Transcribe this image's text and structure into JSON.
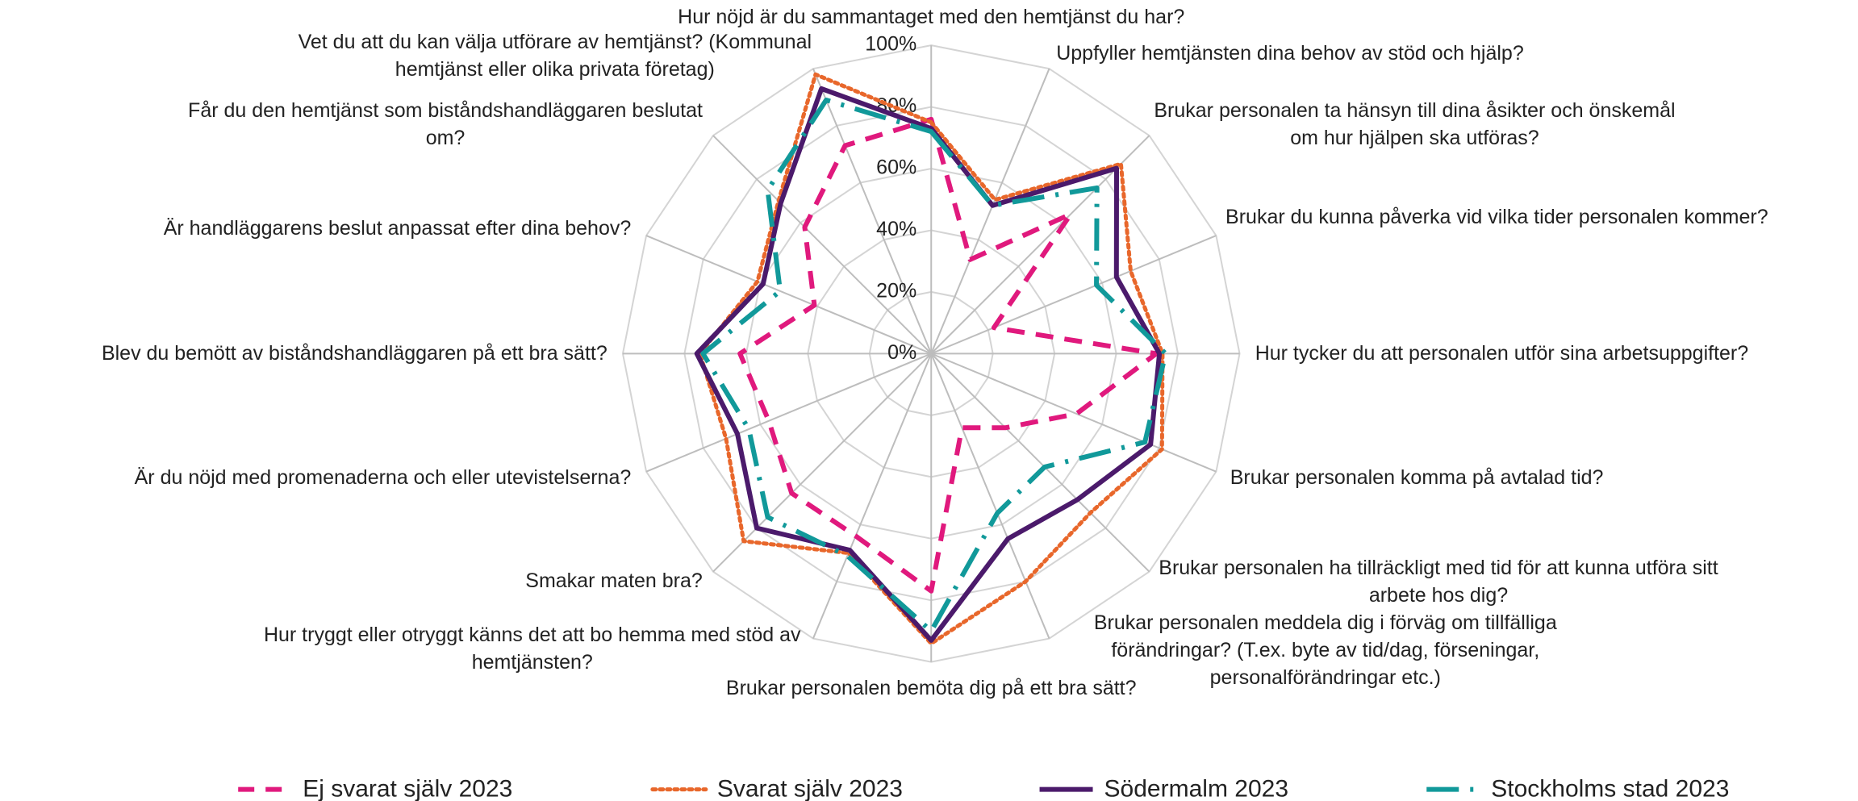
{
  "chart_data": {
    "type": "radar",
    "categories": [
      "Hur nöjd är du sammantaget med den hemtjänst du har?",
      "Uppfyller hemtjänsten dina behov av stöd och hjälp?",
      "Brukar personalen ta hänsyn till dina åsikter och önskemål om hur hjälpen ska utföras?",
      "Brukar du kunna påverka vid vilka tider personalen kommer?",
      "Hur tycker du att personalen utför sina  arbetsuppgifter?",
      "Brukar personalen komma på avtalad tid?",
      "Brukar personalen ha tillräckligt med tid för att kunna utföra sitt arbete hos dig?",
      "Brukar personalen meddela dig i förväg om tillfälliga förändringar? (T.ex. byte av tid/dag, förseningar, personalförändringar etc.)",
      "Brukar personalen bemöta dig på ett bra sätt?",
      "Hur tryggt eller otryggt känns det att bo hemma med stöd av hemtjänsten?",
      "Smakar maten bra?",
      "Är du nöjd med promenaderna och eller utevistelserna?",
      "Blev du bemött av biståndshandläggaren på ett bra sätt?",
      "Är handläggarens beslut anpassat efter dina behov?",
      "Får du den hemtjänst som biståndshandläggaren beslutat om?",
      "Vet du att du kan välja utförare av hemtjänst? (Kommunal hemtjänst eller olika privata företag)"
    ],
    "series": [
      {
        "name": "Ej svarat själv 2023",
        "color": "#e0197d",
        "dash": "dashed",
        "values": [
          76,
          33,
          64,
          22,
          73,
          51,
          34,
          26,
          77,
          64,
          64,
          57,
          62,
          41,
          58,
          73
        ]
      },
      {
        "name": "Svarat själv 2023",
        "color": "#e8672b",
        "dash": "dotted",
        "values": [
          75,
          54,
          87,
          70,
          75,
          81,
          73,
          80,
          94,
          70,
          86,
          72,
          75,
          61,
          70,
          98
        ]
      },
      {
        "name": "Södermalm 2023",
        "color": "#4b1a6b",
        "dash": "solid",
        "values": [
          73,
          52,
          85,
          65,
          74,
          77,
          67,
          65,
          93,
          69,
          80,
          68,
          76,
          59,
          69,
          93
        ]
      },
      {
        "name": "Stockholms stad 2023",
        "color": "#11999a",
        "dash": "longdash",
        "values": [
          72,
          52,
          76,
          58,
          76,
          75,
          52,
          56,
          90,
          71,
          75,
          64,
          74,
          53,
          75,
          89
        ]
      }
    ],
    "ylim": [
      0,
      100
    ],
    "yticks": [
      {
        "value": 0,
        "label": "0%"
      },
      {
        "value": 20,
        "label": "20%"
      },
      {
        "value": 40,
        "label": "40%"
      },
      {
        "value": 60,
        "label": "60%"
      },
      {
        "value": 80,
        "label": "80%"
      },
      {
        "value": 100,
        "label": "100%"
      }
    ],
    "grid": true,
    "legend": "bottom"
  }
}
